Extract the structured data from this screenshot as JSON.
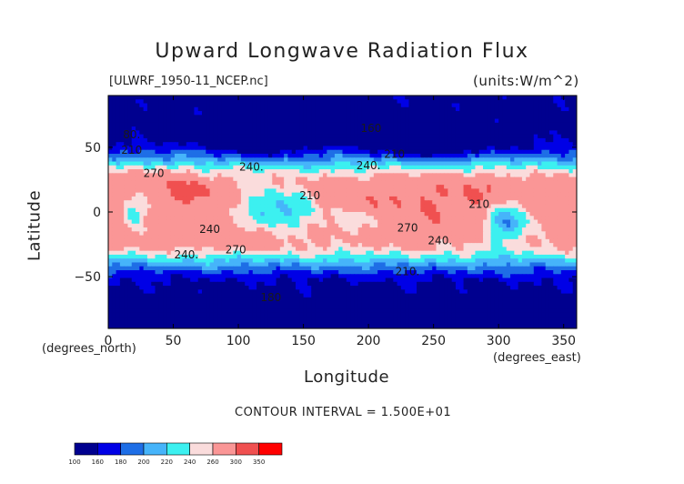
{
  "chart_data": {
    "type": "heatmap",
    "title": "Upward Longwave Radiation Flux",
    "file_label": "[ULWRF_1950-11_NCEP.nc]",
    "units_label": "(units:W/m^2)",
    "xlabel": "Longitude",
    "ylabel": "Latitude",
    "x_unit_note": "(degrees_east)",
    "y_unit_note": "(degrees_north)",
    "contour_interval_text": "CONTOUR INTERVAL = 1.500E+01",
    "xlim": [
      0,
      360
    ],
    "ylim": [
      -90,
      90
    ],
    "x_ticks": [
      0,
      50,
      100,
      150,
      200,
      250,
      300,
      350
    ],
    "y_ticks": [
      50,
      0,
      -50
    ],
    "colorbar": {
      "levels": [
        100,
        160,
        180,
        200,
        220,
        240,
        260,
        300,
        350
      ],
      "level_labels": [
        "100",
        "160",
        "180",
        "200",
        "220",
        "240",
        "260",
        "300",
        "350"
      ],
      "colors": [
        "#00008f",
        "#0000e6",
        "#1e6ee6",
        "#46b4fa",
        "#3cf0f0",
        "#fadcdc",
        "#fa9696",
        "#f05050",
        "#ff0000"
      ]
    },
    "contour_labels": [
      {
        "text": "80.",
        "lon": 18,
        "lat": 57
      },
      {
        "text": "210",
        "lon": 18,
        "lat": 45
      },
      {
        "text": "160",
        "lon": 202,
        "lat": 62
      },
      {
        "text": "210",
        "lon": 220,
        "lat": 42
      },
      {
        "text": "270",
        "lon": 35,
        "lat": 27
      },
      {
        "text": "240.",
        "lon": 110,
        "lat": 32
      },
      {
        "text": "240.",
        "lon": 200,
        "lat": 33
      },
      {
        "text": "210",
        "lon": 155,
        "lat": 10
      },
      {
        "text": "210",
        "lon": 285,
        "lat": 3
      },
      {
        "text": "240",
        "lon": 78,
        "lat": -16
      },
      {
        "text": "240.",
        "lon": 60,
        "lat": -36
      },
      {
        "text": "270",
        "lon": 98,
        "lat": -32
      },
      {
        "text": "270",
        "lon": 230,
        "lat": -15
      },
      {
        "text": "240.",
        "lon": 255,
        "lat": -25
      },
      {
        "text": "210.",
        "lon": 230,
        "lat": -49
      },
      {
        "text": "180",
        "lon": 125,
        "lat": -69
      }
    ]
  }
}
